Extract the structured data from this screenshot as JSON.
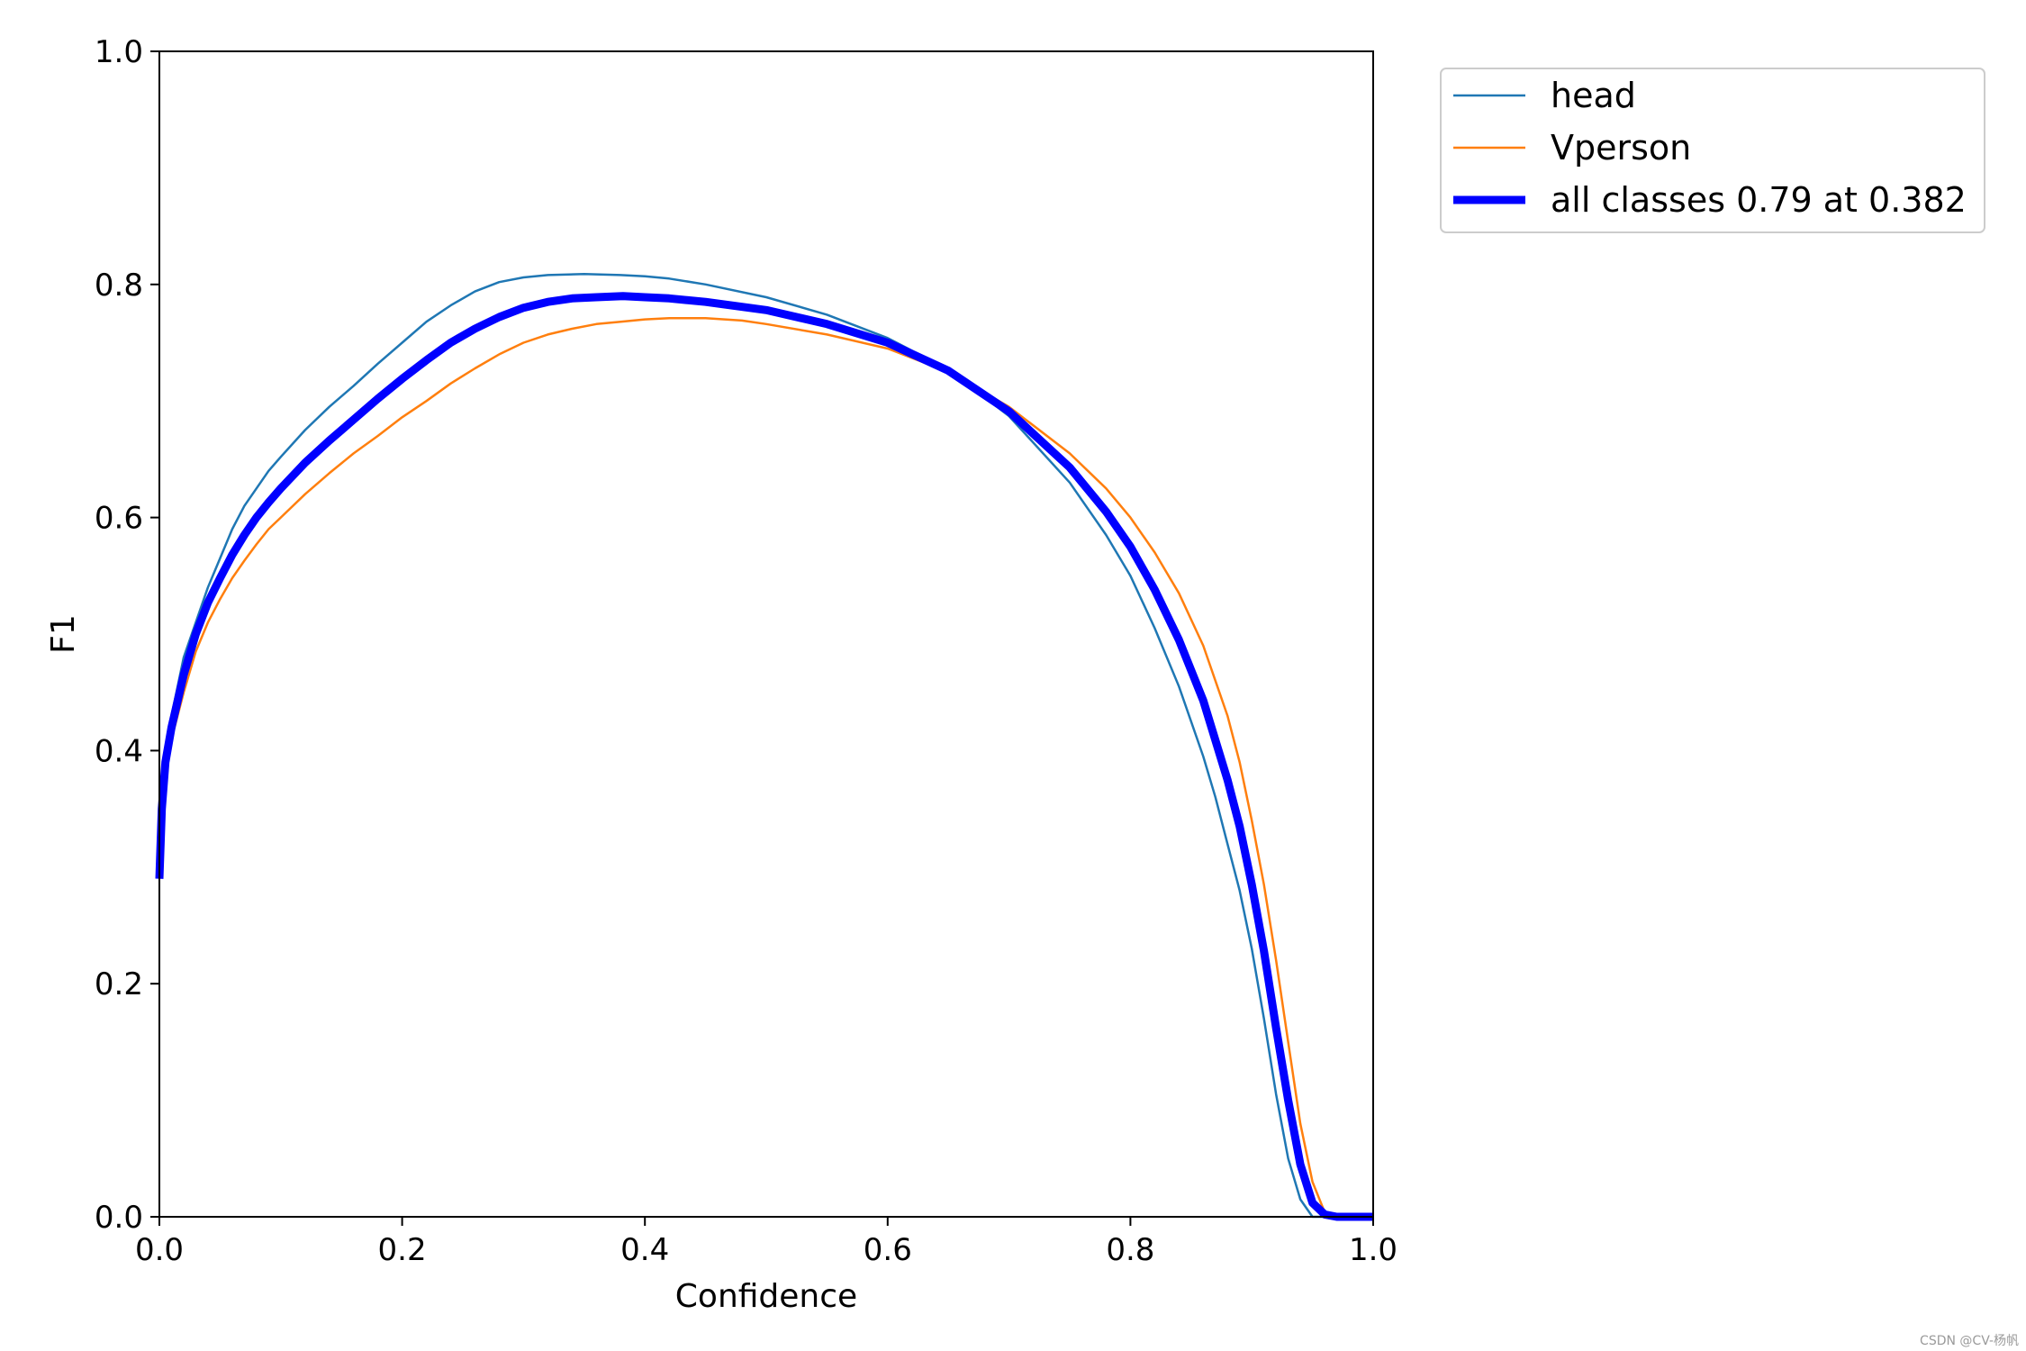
{
  "chart_data": {
    "type": "line",
    "title": "",
    "xlabel": "Confidence",
    "ylabel": "F1",
    "xlim": [
      0,
      1
    ],
    "ylim": [
      0,
      1
    ],
    "xticks": [
      "0.0",
      "0.2",
      "0.4",
      "0.6",
      "0.8",
      "1.0"
    ],
    "yticks": [
      "0.0",
      "0.2",
      "0.4",
      "0.6",
      "0.8",
      "1.0"
    ],
    "grid": false,
    "legend_position": "outside-top-right",
    "series": [
      {
        "name": "head",
        "color": "#1f77b4",
        "points": [
          [
            0.0,
            0.3
          ],
          [
            0.002,
            0.37
          ],
          [
            0.005,
            0.4
          ],
          [
            0.01,
            0.43
          ],
          [
            0.02,
            0.48
          ],
          [
            0.03,
            0.51
          ],
          [
            0.04,
            0.54
          ],
          [
            0.05,
            0.565
          ],
          [
            0.06,
            0.59
          ],
          [
            0.07,
            0.61
          ],
          [
            0.08,
            0.625
          ],
          [
            0.09,
            0.64
          ],
          [
            0.1,
            0.652
          ],
          [
            0.12,
            0.675
          ],
          [
            0.14,
            0.695
          ],
          [
            0.16,
            0.713
          ],
          [
            0.18,
            0.732
          ],
          [
            0.2,
            0.75
          ],
          [
            0.22,
            0.768
          ],
          [
            0.24,
            0.782
          ],
          [
            0.26,
            0.794
          ],
          [
            0.28,
            0.802
          ],
          [
            0.3,
            0.806
          ],
          [
            0.32,
            0.808
          ],
          [
            0.35,
            0.809
          ],
          [
            0.38,
            0.808
          ],
          [
            0.4,
            0.807
          ],
          [
            0.42,
            0.805
          ],
          [
            0.45,
            0.8
          ],
          [
            0.5,
            0.789
          ],
          [
            0.55,
            0.774
          ],
          [
            0.6,
            0.754
          ],
          [
            0.65,
            0.727
          ],
          [
            0.7,
            0.687
          ],
          [
            0.75,
            0.63
          ],
          [
            0.78,
            0.585
          ],
          [
            0.8,
            0.55
          ],
          [
            0.82,
            0.505
          ],
          [
            0.84,
            0.455
          ],
          [
            0.86,
            0.395
          ],
          [
            0.87,
            0.36
          ],
          [
            0.88,
            0.32
          ],
          [
            0.89,
            0.28
          ],
          [
            0.9,
            0.23
          ],
          [
            0.91,
            0.17
          ],
          [
            0.92,
            0.105
          ],
          [
            0.93,
            0.05
          ],
          [
            0.94,
            0.015
          ],
          [
            0.95,
            0.0
          ],
          [
            1.0,
            0.0
          ]
        ]
      },
      {
        "name": "Vperson",
        "color": "#ff7f0e",
        "points": [
          [
            0.0,
            0.32
          ],
          [
            0.002,
            0.35
          ],
          [
            0.005,
            0.38
          ],
          [
            0.01,
            0.41
          ],
          [
            0.02,
            0.45
          ],
          [
            0.03,
            0.485
          ],
          [
            0.04,
            0.51
          ],
          [
            0.05,
            0.53
          ],
          [
            0.06,
            0.548
          ],
          [
            0.07,
            0.563
          ],
          [
            0.08,
            0.577
          ],
          [
            0.09,
            0.59
          ],
          [
            0.1,
            0.6
          ],
          [
            0.12,
            0.62
          ],
          [
            0.14,
            0.638
          ],
          [
            0.16,
            0.655
          ],
          [
            0.18,
            0.67
          ],
          [
            0.2,
            0.686
          ],
          [
            0.22,
            0.7
          ],
          [
            0.24,
            0.715
          ],
          [
            0.26,
            0.728
          ],
          [
            0.28,
            0.74
          ],
          [
            0.3,
            0.75
          ],
          [
            0.32,
            0.757
          ],
          [
            0.34,
            0.762
          ],
          [
            0.36,
            0.766
          ],
          [
            0.38,
            0.768
          ],
          [
            0.4,
            0.77
          ],
          [
            0.42,
            0.771
          ],
          [
            0.45,
            0.771
          ],
          [
            0.48,
            0.769
          ],
          [
            0.5,
            0.766
          ],
          [
            0.55,
            0.757
          ],
          [
            0.6,
            0.745
          ],
          [
            0.65,
            0.725
          ],
          [
            0.7,
            0.695
          ],
          [
            0.75,
            0.655
          ],
          [
            0.78,
            0.625
          ],
          [
            0.8,
            0.6
          ],
          [
            0.82,
            0.57
          ],
          [
            0.84,
            0.535
          ],
          [
            0.86,
            0.49
          ],
          [
            0.88,
            0.43
          ],
          [
            0.89,
            0.39
          ],
          [
            0.9,
            0.34
          ],
          [
            0.91,
            0.285
          ],
          [
            0.92,
            0.22
          ],
          [
            0.93,
            0.15
          ],
          [
            0.94,
            0.08
          ],
          [
            0.95,
            0.03
          ],
          [
            0.96,
            0.004
          ],
          [
            0.97,
            0.0
          ],
          [
            1.0,
            0.0
          ]
        ]
      },
      {
        "name": "all classes 0.79 at 0.382",
        "color": "#0000ff",
        "points": [
          [
            0.0,
            0.29
          ],
          [
            0.002,
            0.35
          ],
          [
            0.005,
            0.39
          ],
          [
            0.01,
            0.42
          ],
          [
            0.02,
            0.465
          ],
          [
            0.03,
            0.5
          ],
          [
            0.04,
            0.527
          ],
          [
            0.05,
            0.548
          ],
          [
            0.06,
            0.568
          ],
          [
            0.07,
            0.585
          ],
          [
            0.08,
            0.6
          ],
          [
            0.09,
            0.613
          ],
          [
            0.1,
            0.625
          ],
          [
            0.12,
            0.647
          ],
          [
            0.14,
            0.666
          ],
          [
            0.16,
            0.684
          ],
          [
            0.18,
            0.702
          ],
          [
            0.2,
            0.719
          ],
          [
            0.22,
            0.735
          ],
          [
            0.24,
            0.75
          ],
          [
            0.26,
            0.762
          ],
          [
            0.28,
            0.772
          ],
          [
            0.3,
            0.78
          ],
          [
            0.32,
            0.785
          ],
          [
            0.34,
            0.788
          ],
          [
            0.36,
            0.789
          ],
          [
            0.382,
            0.79
          ],
          [
            0.4,
            0.789
          ],
          [
            0.42,
            0.788
          ],
          [
            0.45,
            0.785
          ],
          [
            0.5,
            0.778
          ],
          [
            0.55,
            0.766
          ],
          [
            0.6,
            0.75
          ],
          [
            0.65,
            0.726
          ],
          [
            0.7,
            0.691
          ],
          [
            0.75,
            0.643
          ],
          [
            0.78,
            0.605
          ],
          [
            0.8,
            0.575
          ],
          [
            0.82,
            0.538
          ],
          [
            0.84,
            0.495
          ],
          [
            0.86,
            0.443
          ],
          [
            0.88,
            0.375
          ],
          [
            0.89,
            0.335
          ],
          [
            0.9,
            0.285
          ],
          [
            0.91,
            0.228
          ],
          [
            0.92,
            0.162
          ],
          [
            0.93,
            0.1
          ],
          [
            0.94,
            0.045
          ],
          [
            0.95,
            0.012
          ],
          [
            0.96,
            0.002
          ],
          [
            0.97,
            0.0
          ],
          [
            1.0,
            0.0
          ]
        ]
      }
    ]
  },
  "watermark": "CSDN @CV-杨帆"
}
